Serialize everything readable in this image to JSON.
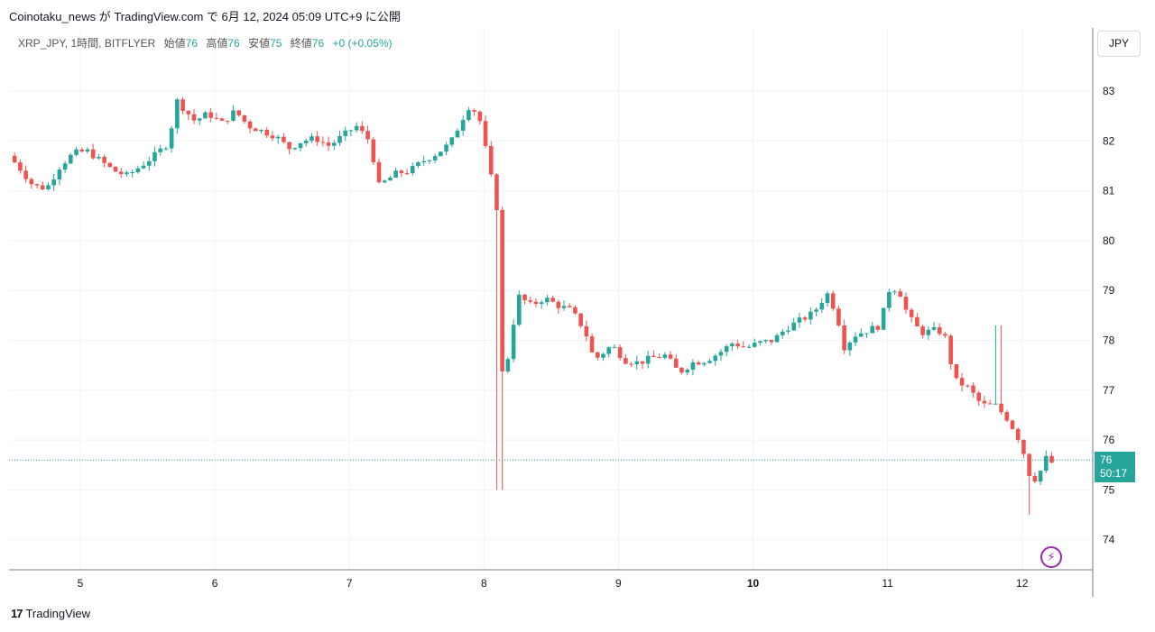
{
  "header": {
    "publish_line": "Coinotaku_news が TradingView.com で 6月 12, 2024 05:09 UTC+9 に公開"
  },
  "legend": {
    "symbol": "XRP_JPY, 1時間, BITFLYER",
    "open_label": "始値",
    "open_value": "76",
    "high_label": "高値",
    "high_value": "76",
    "low_label": "安値",
    "low_value": "75",
    "close_label": "終値",
    "close_value": "76",
    "change": "+0 (+0.05%)"
  },
  "currency": "JPY",
  "price_tag": {
    "price": "76",
    "countdown": "50:17"
  },
  "footer": {
    "logo": "17",
    "brand": "TradingView"
  },
  "colors": {
    "up": "#26a69a",
    "down": "#ef5350",
    "grid": "#f0f3fa",
    "axis": "#787b86",
    "bolt": "#9c27b0"
  },
  "icons": {
    "bolt": "lightning-bolt-icon"
  },
  "chart_data": {
    "type": "candlestick",
    "x_tick_labels": [
      "5",
      "6",
      "7",
      "8",
      "9",
      "10",
      "11",
      "12"
    ],
    "y_tick_labels": [
      "74",
      "75",
      "76",
      "77",
      "78",
      "79",
      "80",
      "81",
      "82",
      "83"
    ],
    "ylim": [
      73.4,
      83.8
    ],
    "xlim": [
      4.45,
      12.52
    ],
    "last_price": 75.6,
    "grid": true,
    "anchors": [
      [
        4.47,
        81.7
      ],
      [
        4.55,
        81.45
      ],
      [
        4.65,
        81.1
      ],
      [
        4.75,
        81.05
      ],
      [
        4.85,
        81.5
      ],
      [
        4.95,
        81.75
      ],
      [
        5.05,
        81.8
      ],
      [
        5.15,
        81.6
      ],
      [
        5.25,
        81.4
      ],
      [
        5.35,
        81.3
      ],
      [
        5.45,
        81.5
      ],
      [
        5.55,
        81.7
      ],
      [
        5.65,
        81.95
      ],
      [
        5.72,
        82.8
      ],
      [
        5.85,
        82.4
      ],
      [
        5.95,
        82.55
      ],
      [
        6.05,
        82.35
      ],
      [
        6.15,
        82.6
      ],
      [
        6.25,
        82.3
      ],
      [
        6.35,
        82.2
      ],
      [
        6.45,
        82.1
      ],
      [
        6.55,
        81.85
      ],
      [
        6.65,
        82.0
      ],
      [
        6.75,
        82.05
      ],
      [
        6.85,
        81.9
      ],
      [
        6.95,
        82.1
      ],
      [
        7.05,
        82.3
      ],
      [
        7.15,
        82.0
      ],
      [
        7.22,
        81.1
      ],
      [
        7.35,
        81.35
      ],
      [
        7.45,
        81.4
      ],
      [
        7.55,
        81.6
      ],
      [
        7.65,
        81.75
      ],
      [
        7.75,
        81.95
      ],
      [
        7.85,
        82.5
      ],
      [
        7.9,
        82.75
      ],
      [
        7.97,
        82.4
      ],
      [
        8.03,
        81.6
      ],
      [
        8.1,
        80.6
      ],
      [
        8.14,
        77.05
      ],
      [
        8.2,
        78.0
      ],
      [
        8.25,
        78.9
      ],
      [
        8.35,
        78.7
      ],
      [
        8.45,
        78.85
      ],
      [
        8.55,
        78.7
      ],
      [
        8.65,
        78.6
      ],
      [
        8.75,
        78.2
      ],
      [
        8.82,
        77.6
      ],
      [
        8.95,
        77.9
      ],
      [
        9.05,
        77.6
      ],
      [
        9.15,
        77.55
      ],
      [
        9.25,
        77.65
      ],
      [
        9.35,
        77.7
      ],
      [
        9.45,
        77.35
      ],
      [
        9.55,
        77.55
      ],
      [
        9.65,
        77.6
      ],
      [
        9.75,
        77.75
      ],
      [
        9.85,
        77.95
      ],
      [
        9.95,
        77.85
      ],
      [
        10.05,
        77.95
      ],
      [
        10.15,
        78.0
      ],
      [
        10.25,
        78.25
      ],
      [
        10.35,
        78.4
      ],
      [
        10.45,
        78.55
      ],
      [
        10.55,
        78.95
      ],
      [
        10.62,
        78.55
      ],
      [
        10.68,
        77.85
      ],
      [
        10.75,
        78.1
      ],
      [
        10.85,
        78.2
      ],
      [
        10.95,
        78.3
      ],
      [
        11.0,
        79.0
      ],
      [
        11.08,
        79.05
      ],
      [
        11.15,
        78.5
      ],
      [
        11.25,
        78.15
      ],
      [
        11.35,
        78.2
      ],
      [
        11.42,
        78.15
      ],
      [
        11.5,
        77.2
      ],
      [
        11.6,
        77.05
      ],
      [
        11.7,
        76.7
      ],
      [
        11.8,
        76.7
      ],
      [
        11.9,
        76.4
      ],
      [
        12.0,
        75.9
      ],
      [
        12.03,
        75.5
      ],
      [
        12.07,
        75.2
      ],
      [
        12.12,
        75.25
      ],
      [
        12.17,
        75.65
      ],
      [
        12.22,
        75.55
      ]
    ]
  }
}
